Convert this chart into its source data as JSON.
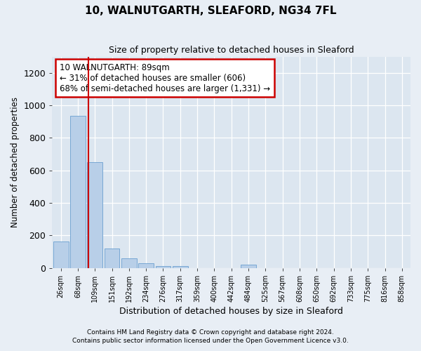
{
  "title1": "10, WALNUTGARTH, SLEAFORD, NG34 7FL",
  "title2": "Size of property relative to detached houses in Sleaford",
  "xlabel": "Distribution of detached houses by size in Sleaford",
  "ylabel": "Number of detached properties",
  "categories": [
    "26sqm",
    "68sqm",
    "109sqm",
    "151sqm",
    "192sqm",
    "234sqm",
    "276sqm",
    "317sqm",
    "359sqm",
    "400sqm",
    "442sqm",
    "484sqm",
    "525sqm",
    "567sqm",
    "608sqm",
    "650sqm",
    "692sqm",
    "733sqm",
    "775sqm",
    "816sqm",
    "858sqm"
  ],
  "values": [
    160,
    935,
    650,
    120,
    60,
    28,
    12,
    12,
    0,
    0,
    0,
    20,
    0,
    0,
    0,
    0,
    0,
    0,
    0,
    0,
    0
  ],
  "bar_color": "#b8cfe8",
  "bar_edge_color": "#6a9fd0",
  "property_line_x": 1.62,
  "property_line_color": "#cc0000",
  "ylim": [
    0,
    1300
  ],
  "yticks": [
    0,
    200,
    400,
    600,
    800,
    1000,
    1200
  ],
  "annotation_text": "10 WALNUTGARTH: 89sqm\n← 31% of detached houses are smaller (606)\n68% of semi-detached houses are larger (1,331) →",
  "annotation_box_facecolor": "#ffffff",
  "annotation_box_edgecolor": "#cc0000",
  "footer1": "Contains HM Land Registry data © Crown copyright and database right 2024.",
  "footer2": "Contains public sector information licensed under the Open Government Licence v3.0.",
  "fig_facecolor": "#e8eef5",
  "plot_bg_color": "#dce6f0"
}
